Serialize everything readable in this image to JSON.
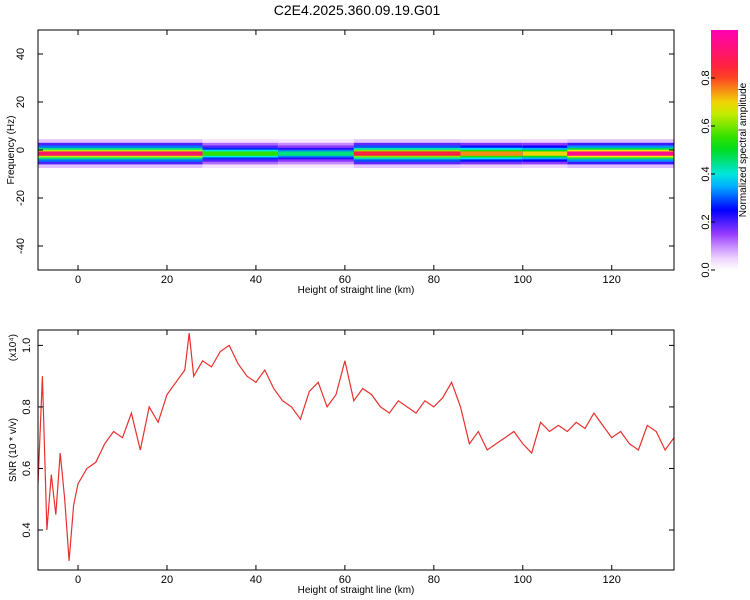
{
  "title": "C2E4.2025.360.09.19.G01",
  "chart_data": [
    {
      "type": "heatmap",
      "xlabel": "Height of straight line (km)",
      "ylabel": "Frequency (Hz)",
      "xlim": [
        -9,
        134
      ],
      "ylim": [
        -50,
        50
      ],
      "xticks": [
        0,
        20,
        40,
        60,
        80,
        100,
        120
      ],
      "yticks": [
        -40,
        -20,
        0,
        20,
        40
      ],
      "colorbar": {
        "label": "Normalized spectral amplitude",
        "ticks": [
          "0.0",
          "0.2",
          "0.4",
          "0.6",
          "0.8"
        ],
        "tick_values": [
          0.0,
          0.2,
          0.4,
          0.6,
          0.8
        ],
        "range": [
          0,
          1
        ],
        "colormap": "rainbow (white-violet-blue-cyan-green-yellow-red-magenta)"
      },
      "band": {
        "description": "Narrow high-amplitude band centered near 0 Hz across the full height range",
        "center_hz": -1.5,
        "segments": [
          {
            "x": [
              -9,
              28
            ],
            "peak": 0.9
          },
          {
            "x": [
              28,
              45
            ],
            "peak": 0.55
          },
          {
            "x": [
              45,
              62
            ],
            "peak": 0.45
          },
          {
            "x": [
              62,
              86
            ],
            "peak": 0.85
          },
          {
            "x": [
              86,
              100
            ],
            "peak": 0.75
          },
          {
            "x": [
              100,
              110
            ],
            "peak": 0.7
          },
          {
            "x": [
              110,
              134
            ],
            "peak": 0.95
          }
        ]
      }
    },
    {
      "type": "line",
      "xlabel": "Height of straight line (km)",
      "ylabel": "SNR (10 * v/v)",
      "yscale_label": "(x10⁴)",
      "xlim": [
        -9,
        134
      ],
      "ylim": [
        0.27,
        1.05
      ],
      "xticks": [
        0,
        20,
        40,
        60,
        80,
        100,
        120
      ],
      "yticks": [
        0.4,
        0.6,
        0.8,
        1.0
      ],
      "color": "#e8302e",
      "series": [
        {
          "x": [
            -9,
            -8,
            -7,
            -6,
            -5,
            -4,
            -3,
            -2,
            -1,
            0,
            2,
            4,
            6,
            8,
            10,
            12,
            14,
            16,
            18,
            20,
            22,
            24,
            25,
            26,
            28,
            30,
            32,
            34,
            36,
            38,
            40,
            42,
            44,
            46,
            48,
            50,
            52,
            54,
            56,
            58,
            60,
            62,
            64,
            66,
            68,
            70,
            72,
            74,
            76,
            78,
            80,
            82,
            84,
            86,
            88,
            90,
            92,
            94,
            96,
            98,
            100,
            102,
            104,
            106,
            108,
            110,
            112,
            114,
            116,
            118,
            120,
            122,
            124,
            126,
            128,
            130,
            132,
            134
          ],
          "y": [
            0.55,
            0.9,
            0.4,
            0.58,
            0.45,
            0.65,
            0.5,
            0.3,
            0.48,
            0.55,
            0.6,
            0.62,
            0.68,
            0.72,
            0.7,
            0.78,
            0.66,
            0.8,
            0.75,
            0.84,
            0.88,
            0.92,
            1.04,
            0.9,
            0.95,
            0.93,
            0.98,
            1.0,
            0.94,
            0.9,
            0.88,
            0.92,
            0.86,
            0.82,
            0.8,
            0.76,
            0.85,
            0.88,
            0.8,
            0.84,
            0.95,
            0.82,
            0.86,
            0.84,
            0.8,
            0.78,
            0.82,
            0.8,
            0.78,
            0.82,
            0.8,
            0.83,
            0.88,
            0.8,
            0.68,
            0.72,
            0.66,
            0.68,
            0.7,
            0.72,
            0.68,
            0.65,
            0.75,
            0.72,
            0.74,
            0.72,
            0.75,
            0.73,
            0.78,
            0.74,
            0.7,
            0.72,
            0.68,
            0.66,
            0.74,
            0.72,
            0.66,
            0.7
          ]
        }
      ]
    }
  ]
}
